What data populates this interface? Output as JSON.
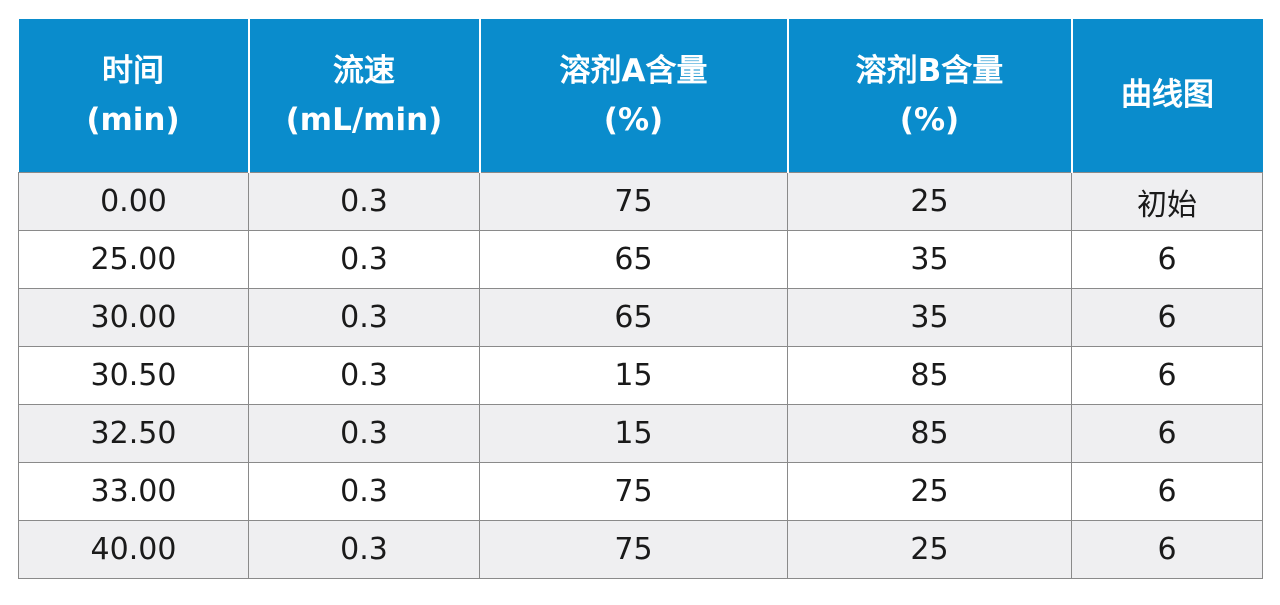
{
  "table": {
    "headers": [
      {
        "line1": "时间",
        "line2": "(min)"
      },
      {
        "line1": "流速",
        "line2": "(mL/min)"
      },
      {
        "line1": "溶剂A含量",
        "line2": "(%)"
      },
      {
        "line1": "溶剂B含量",
        "line2": "(%)"
      },
      {
        "line1": "曲线图",
        "line2": ""
      }
    ],
    "rows": [
      [
        "0.00",
        "0.3",
        "75",
        "25",
        "初始"
      ],
      [
        "25.00",
        "0.3",
        "65",
        "35",
        "6"
      ],
      [
        "30.00",
        "0.3",
        "65",
        "35",
        "6"
      ],
      [
        "30.50",
        "0.3",
        "15",
        "85",
        "6"
      ],
      [
        "32.50",
        "0.3",
        "15",
        "85",
        "6"
      ],
      [
        "33.00",
        "0.3",
        "75",
        "25",
        "6"
      ],
      [
        "40.00",
        "0.3",
        "75",
        "25",
        "6"
      ]
    ]
  },
  "colors": {
    "header_bg": "#0a8ccc",
    "header_text": "#ffffff",
    "row_alt_bg": "#efeff1",
    "border": "#8a8a8a"
  }
}
